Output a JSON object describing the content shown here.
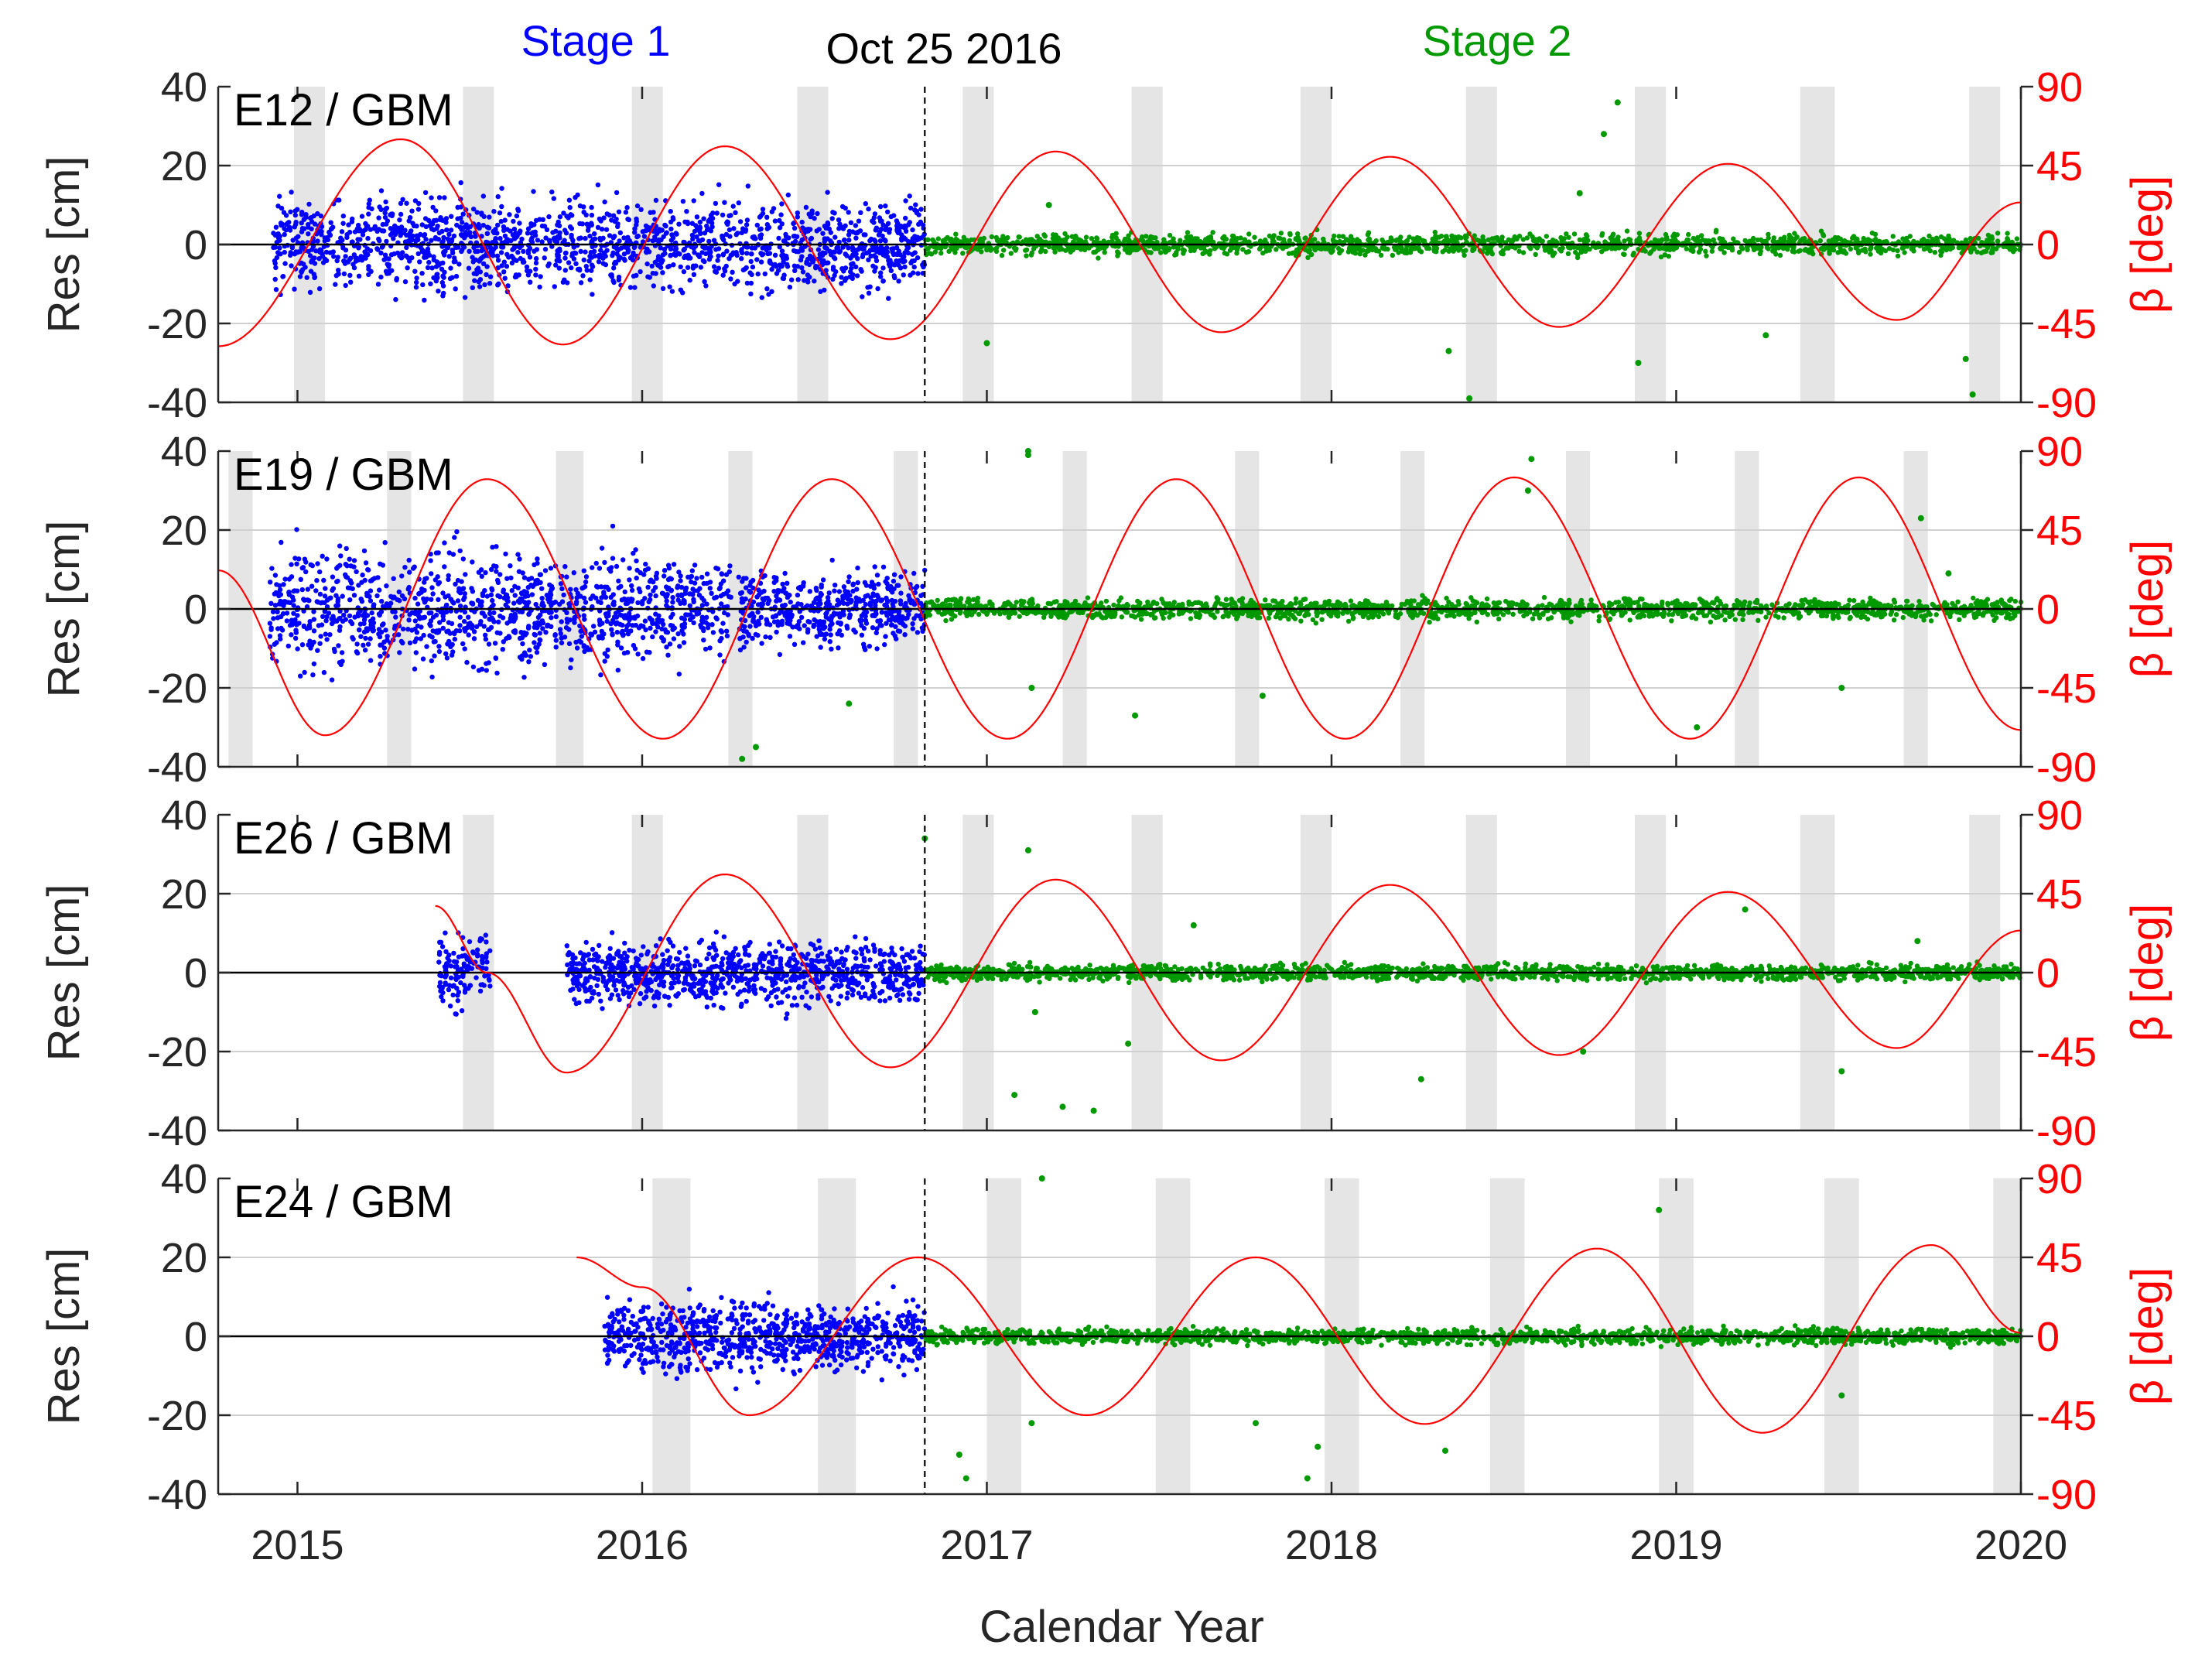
{
  "chart_data": {
    "type": "scatter",
    "xlabel": "Calendar Year",
    "xlim": [
      2014.77,
      2020.0
    ],
    "xticks": [
      2015,
      2016,
      2017,
      2018,
      2019,
      2020
    ],
    "xtick_labels": [
      "2015",
      "2016",
      "2017",
      "2018",
      "2019",
      "2020"
    ],
    "event": {
      "x": 2016.82,
      "label": "Oct 25 2016"
    },
    "stage_labels": [
      {
        "text": "Stage 1",
        "x": 2015.87,
        "color": "#0000ff"
      },
      {
        "text": "Stage 2",
        "x": 2018.47,
        "color": "#009900"
      }
    ],
    "left_axis": {
      "label": "Res [cm]",
      "ylim": [
        -40,
        40
      ],
      "ticks": [
        -40,
        -20,
        0,
        20,
        40
      ]
    },
    "right_axis": {
      "label": "β [deg]",
      "ylim": [
        -90,
        90
      ],
      "ticks": [
        -90,
        -45,
        0,
        45,
        90
      ],
      "color": "#ff0000"
    },
    "colors": {
      "stage1": "#0000ff",
      "stage2": "#009900",
      "beta": "#ff0000",
      "shade": "#e5e5e5"
    },
    "panels": [
      {
        "label": "E12 / GBM",
        "beta": [
          [
            2014.77,
            -58
          ],
          [
            2015.3,
            60
          ],
          [
            2015.77,
            -57
          ],
          [
            2016.24,
            56
          ],
          [
            2016.72,
            -54
          ],
          [
            2017.2,
            53
          ],
          [
            2017.68,
            -50
          ],
          [
            2018.17,
            50
          ],
          [
            2018.66,
            -47
          ],
          [
            2019.15,
            46
          ],
          [
            2019.64,
            -43
          ],
          [
            2020.0,
            24
          ]
        ],
        "shaded": [
          [
            2014.99,
            2015.08
          ],
          [
            2015.48,
            2015.57
          ],
          [
            2015.97,
            2016.06
          ],
          [
            2016.45,
            2016.54
          ],
          [
            2016.93,
            2017.02
          ],
          [
            2017.42,
            2017.51
          ],
          [
            2017.91,
            2018.0
          ],
          [
            2018.39,
            2018.48
          ],
          [
            2018.88,
            2018.97
          ],
          [
            2019.36,
            2019.46
          ],
          [
            2019.85,
            2019.94
          ]
        ],
        "stage1_segments": [
          [
            2014.93,
            2016.82,
            14
          ]
        ],
        "stage2": {
          "start": 2016.82,
          "end": 2020.0,
          "amp": 4
        },
        "outliers": [
          [
            2017.0,
            -25
          ],
          [
            2017.18,
            10
          ],
          [
            2018.34,
            -27
          ],
          [
            2018.4,
            -39
          ],
          [
            2018.79,
            28
          ],
          [
            2018.83,
            36
          ],
          [
            2018.89,
            -30
          ],
          [
            2019.26,
            -23
          ],
          [
            2019.84,
            -29
          ],
          [
            2019.86,
            -38
          ],
          [
            2018.72,
            13
          ]
        ]
      },
      {
        "label": "E19 / GBM",
        "beta": [
          [
            2014.77,
            22
          ],
          [
            2015.08,
            -72
          ],
          [
            2015.55,
            74
          ],
          [
            2016.06,
            -74
          ],
          [
            2016.55,
            74
          ],
          [
            2017.06,
            -74
          ],
          [
            2017.55,
            74
          ],
          [
            2018.04,
            -74
          ],
          [
            2018.53,
            75
          ],
          [
            2019.04,
            -74
          ],
          [
            2019.53,
            75
          ],
          [
            2020.0,
            -69
          ]
        ],
        "shaded": [
          [
            2014.8,
            2014.87
          ],
          [
            2015.26,
            2015.33
          ],
          [
            2015.75,
            2015.83
          ],
          [
            2016.25,
            2016.32
          ],
          [
            2016.73,
            2016.8
          ],
          [
            2017.22,
            2017.29
          ],
          [
            2017.72,
            2017.79
          ],
          [
            2018.2,
            2018.27
          ],
          [
            2018.68,
            2018.75
          ],
          [
            2019.17,
            2019.24
          ],
          [
            2019.66,
            2019.73
          ]
        ],
        "stage1_segments": [
          [
            2014.92,
            2016.26,
            18
          ],
          [
            2016.28,
            2016.82,
            12
          ]
        ],
        "stage2": {
          "start": 2016.82,
          "end": 2020.0,
          "amp": 4
        },
        "outliers": [
          [
            2017.12,
            40
          ],
          [
            2017.12,
            39
          ],
          [
            2017.13,
            -20
          ],
          [
            2016.29,
            -38
          ],
          [
            2016.33,
            -35
          ],
          [
            2016.6,
            -24
          ],
          [
            2017.43,
            -27
          ],
          [
            2017.8,
            -22
          ],
          [
            2018.57,
            30
          ],
          [
            2018.58,
            38
          ],
          [
            2019.06,
            -30
          ],
          [
            2019.48,
            -20
          ],
          [
            2019.71,
            23
          ],
          [
            2019.79,
            9
          ]
        ]
      },
      {
        "label": "E26 / GBM",
        "beta": [
          [
            2015.4,
            38
          ],
          [
            2015.55,
            0
          ],
          [
            2015.78,
            -57
          ],
          [
            2016.24,
            56
          ],
          [
            2016.72,
            -54
          ],
          [
            2017.2,
            53
          ],
          [
            2017.68,
            -50
          ],
          [
            2018.17,
            50
          ],
          [
            2018.66,
            -47
          ],
          [
            2019.15,
            46
          ],
          [
            2019.64,
            -43
          ],
          [
            2020.0,
            24
          ]
        ],
        "shaded": [
          [
            2015.48,
            2015.57
          ],
          [
            2015.97,
            2016.06
          ],
          [
            2016.45,
            2016.54
          ],
          [
            2016.93,
            2017.02
          ],
          [
            2017.42,
            2017.51
          ],
          [
            2017.91,
            2018.0
          ],
          [
            2018.39,
            2018.48
          ],
          [
            2018.88,
            2018.97
          ],
          [
            2019.36,
            2019.46
          ],
          [
            2019.85,
            2019.94
          ]
        ],
        "stage1_segments": [
          [
            2015.41,
            2015.56,
            12
          ],
          [
            2015.78,
            2016.82,
            10
          ]
        ],
        "stage2": {
          "start": 2016.82,
          "end": 2020.0,
          "amp": 3
        },
        "outliers": [
          [
            2016.82,
            34
          ],
          [
            2017.12,
            31
          ],
          [
            2017.08,
            -31
          ],
          [
            2017.14,
            -10
          ],
          [
            2017.22,
            -34
          ],
          [
            2017.31,
            -35
          ],
          [
            2017.41,
            -18
          ],
          [
            2017.6,
            12
          ],
          [
            2018.26,
            -27
          ],
          [
            2018.73,
            -20
          ],
          [
            2019.2,
            16
          ],
          [
            2019.48,
            -25
          ],
          [
            2019.7,
            8
          ]
        ]
      },
      {
        "label": "E24 / GBM",
        "beta": [
          [
            2015.81,
            45
          ],
          [
            2016.0,
            28
          ],
          [
            2016.31,
            -45
          ],
          [
            2016.8,
            45
          ],
          [
            2017.29,
            -45
          ],
          [
            2017.78,
            45
          ],
          [
            2018.27,
            -50
          ],
          [
            2018.77,
            50
          ],
          [
            2019.25,
            -55
          ],
          [
            2019.74,
            52
          ],
          [
            2020.0,
            2
          ]
        ],
        "shaded": [
          [
            2016.03,
            2016.14
          ],
          [
            2016.51,
            2016.62
          ],
          [
            2017.0,
            2017.1
          ],
          [
            2017.49,
            2017.59
          ],
          [
            2017.98,
            2018.08
          ],
          [
            2018.46,
            2018.56
          ],
          [
            2018.95,
            2019.05
          ],
          [
            2019.43,
            2019.53
          ],
          [
            2019.92,
            2020.0
          ]
        ],
        "stage1_segments": [
          [
            2015.89,
            2016.82,
            11
          ]
        ],
        "stage2": {
          "start": 2016.82,
          "end": 2020.0,
          "amp": 3
        },
        "outliers": [
          [
            2017.16,
            40
          ],
          [
            2018.95,
            32
          ],
          [
            2016.92,
            -30
          ],
          [
            2016.94,
            -36
          ],
          [
            2017.13,
            -22
          ],
          [
            2017.78,
            -22
          ],
          [
            2017.96,
            -28
          ],
          [
            2017.93,
            -36
          ],
          [
            2018.33,
            -29
          ],
          [
            2019.48,
            -15
          ]
        ]
      }
    ]
  }
}
